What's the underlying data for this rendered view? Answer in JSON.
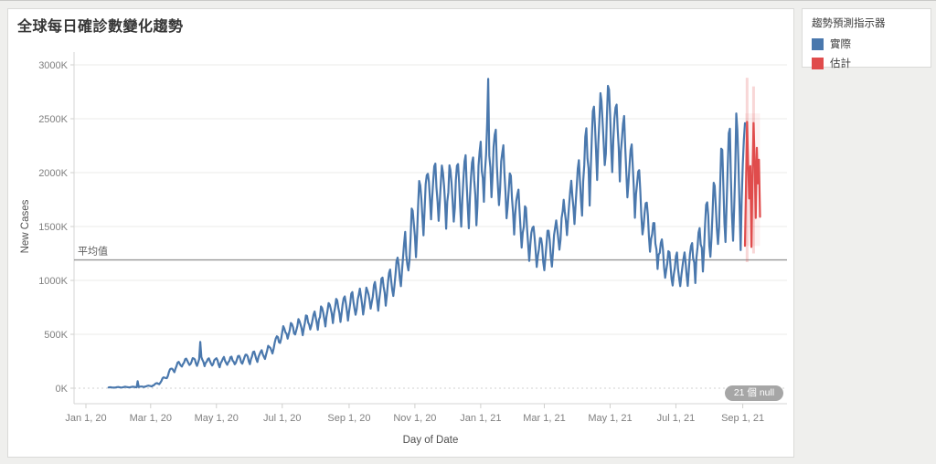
{
  "page": {
    "title": "全球每日確診數變化趨勢",
    "background": "#efefed"
  },
  "legend": {
    "title": "趨勢預測指示器",
    "items": [
      {
        "label": "實際",
        "color": "#4a78ad"
      },
      {
        "label": "估計",
        "color": "#e04c4c"
      }
    ]
  },
  "null_badge": {
    "label": "21 個 null"
  },
  "chart_data": {
    "type": "line",
    "title": "全球每日確診數變化趨勢",
    "xlabel": "Day of Date",
    "ylabel": "New Cases",
    "unit": "thousand cases (K) per day",
    "grid": "horizontal",
    "legend_position": "top-right",
    "ylim": [
      0,
      3000
    ],
    "x_domain_days_from_2020_01_01": [
      0,
      650
    ],
    "x_ticks": [
      {
        "day": 0,
        "label": "Jan 1, 20"
      },
      {
        "day": 60,
        "label": "Mar 1, 20"
      },
      {
        "day": 121,
        "label": "May 1, 20"
      },
      {
        "day": 182,
        "label": "Jul 1, 20"
      },
      {
        "day": 244,
        "label": "Sep 1, 20"
      },
      {
        "day": 305,
        "label": "Nov 1, 20"
      },
      {
        "day": 366,
        "label": "Jan 1, 21"
      },
      {
        "day": 425,
        "label": "Mar 1, 21"
      },
      {
        "day": 486,
        "label": "May 1, 21"
      },
      {
        "day": 547,
        "label": "Jul 1, 21"
      },
      {
        "day": 609,
        "label": "Sep 1, 21"
      }
    ],
    "y_ticks": [
      {
        "value": 0,
        "label": "0K"
      },
      {
        "value": 500,
        "label": "500K"
      },
      {
        "value": 1000,
        "label": "1000K"
      },
      {
        "value": 1500,
        "label": "1500K"
      },
      {
        "value": 2000,
        "label": "2000K"
      },
      {
        "value": 2500,
        "label": "2500K"
      },
      {
        "value": 3000,
        "label": "3000K"
      }
    ],
    "average_line": {
      "label": "平均值",
      "value_k": 1190
    },
    "annotations": {
      "null_indicator": "21 個 null"
    },
    "series": [
      {
        "name": "實際",
        "kind": "actual-daily-cases",
        "color": "#4a78ad",
        "day_range": [
          21,
          611
        ],
        "weekly_envelope_points_day_lowK_highK": [
          [
            21,
            4,
            9
          ],
          [
            28,
            5,
            11
          ],
          [
            35,
            6,
            13
          ],
          [
            42,
            7,
            14
          ],
          [
            49,
            8,
            15
          ],
          [
            56,
            12,
            22
          ],
          [
            63,
            20,
            36
          ],
          [
            70,
            45,
            85
          ],
          [
            78,
            120,
            190
          ],
          [
            85,
            180,
            250
          ],
          [
            92,
            205,
            280
          ],
          [
            99,
            210,
            290
          ],
          [
            106,
            215,
            300
          ],
          [
            113,
            205,
            290
          ],
          [
            121,
            200,
            285
          ],
          [
            129,
            210,
            295
          ],
          [
            137,
            215,
            300
          ],
          [
            144,
            222,
            310
          ],
          [
            151,
            230,
            330
          ],
          [
            158,
            245,
            350
          ],
          [
            165,
            260,
            375
          ],
          [
            172,
            300,
            430
          ],
          [
            182,
            430,
            580
          ],
          [
            189,
            460,
            620
          ],
          [
            196,
            490,
            650
          ],
          [
            205,
            515,
            690
          ],
          [
            213,
            545,
            730
          ],
          [
            219,
            570,
            780
          ],
          [
            226,
            600,
            830
          ],
          [
            235,
            625,
            860
          ],
          [
            244,
            650,
            890
          ],
          [
            251,
            670,
            920
          ],
          [
            258,
            695,
            950
          ],
          [
            265,
            715,
            1000
          ],
          [
            274,
            745,
            1060
          ],
          [
            281,
            790,
            1150
          ],
          [
            288,
            850,
            1260
          ],
          [
            295,
            950,
            1430
          ],
          [
            302,
            1120,
            1700
          ],
          [
            309,
            1350,
            1950
          ],
          [
            316,
            1500,
            2120
          ],
          [
            323,
            1540,
            2170
          ],
          [
            330,
            1510,
            2100
          ],
          [
            337,
            1500,
            2090
          ],
          [
            344,
            1530,
            2160
          ],
          [
            351,
            1540,
            2210
          ],
          [
            358,
            1460,
            2260
          ],
          [
            365,
            1550,
            2380
          ],
          [
            371,
            1750,
            2520
          ],
          [
            378,
            1800,
            2470
          ],
          [
            385,
            1700,
            2330
          ],
          [
            392,
            1520,
            2150
          ],
          [
            399,
            1380,
            1950
          ],
          [
            406,
            1280,
            1750
          ],
          [
            413,
            1180,
            1580
          ],
          [
            420,
            1100,
            1450
          ],
          [
            427,
            1110,
            1460
          ],
          [
            434,
            1180,
            1560
          ],
          [
            441,
            1300,
            1720
          ],
          [
            448,
            1420,
            1920
          ],
          [
            455,
            1530,
            2120
          ],
          [
            462,
            1670,
            2380
          ],
          [
            469,
            1820,
            2620
          ],
          [
            476,
            1980,
            2820
          ],
          [
            483,
            2030,
            2860
          ],
          [
            490,
            2000,
            2790
          ],
          [
            497,
            1900,
            2620
          ],
          [
            504,
            1720,
            2380
          ],
          [
            511,
            1550,
            2130
          ],
          [
            518,
            1380,
            1860
          ],
          [
            525,
            1220,
            1620
          ],
          [
            532,
            1080,
            1450
          ],
          [
            539,
            990,
            1340
          ],
          [
            546,
            920,
            1290
          ],
          [
            553,
            900,
            1280
          ],
          [
            560,
            950,
            1380
          ],
          [
            567,
            1030,
            1520
          ],
          [
            574,
            1130,
            1760
          ],
          [
            581,
            1210,
            2000
          ],
          [
            588,
            1270,
            2230
          ],
          [
            595,
            1300,
            2420
          ],
          [
            602,
            1330,
            2600
          ],
          [
            607,
            1350,
            2670
          ],
          [
            611,
            1310,
            2520
          ]
        ],
        "single_day_spikes_day_valueK": [
          [
            48,
            65
          ],
          [
            106,
            430
          ],
          [
            373,
            2870
          ]
        ]
      },
      {
        "name": "估計",
        "kind": "forecast",
        "color": "#e04c4c",
        "day_range": [
          611,
          625
        ],
        "points_day_valueK": [
          [
            611,
            1320
          ],
          [
            612,
            1900
          ],
          [
            613,
            2470
          ],
          [
            614,
            2080
          ],
          [
            615,
            1760
          ],
          [
            616,
            2060
          ],
          [
            617,
            1310
          ],
          [
            618,
            1950
          ],
          [
            619,
            2460
          ],
          [
            620,
            2100
          ],
          [
            621,
            1580
          ],
          [
            622,
            2230
          ],
          [
            623,
            1900
          ],
          [
            624,
            2120
          ],
          [
            625,
            1590
          ]
        ],
        "confidence_spikes_day_lowK_highK": [
          [
            613,
            1170,
            2880
          ],
          [
            619,
            1250,
            2800
          ]
        ]
      }
    ]
  }
}
